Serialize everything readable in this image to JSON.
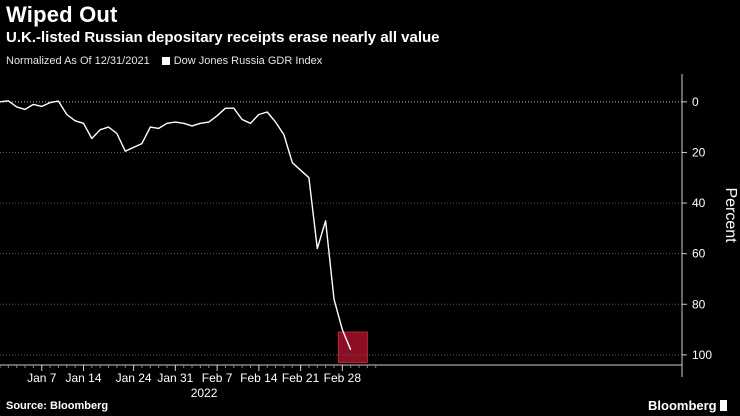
{
  "header": {
    "title": "Wiped Out",
    "subtitle": "U.K.-listed Russian depositary receipts erase nearly all value"
  },
  "legend": {
    "note": "Normalized As Of 12/31/2021",
    "series_label": "Dow Jones Russia GDR Index"
  },
  "footer": {
    "source": "Source: Bloomberg",
    "brand": "Bloomberg"
  },
  "colors": {
    "background": "#000000",
    "line": "#ffffff",
    "highlight": "#8b0f22"
  },
  "chart_data": {
    "type": "line",
    "title": "Wiped Out",
    "subtitle": "U.K.-listed Russian depositary receipts erase nearly all value",
    "ylabel": "Percent",
    "xlabel": "2022",
    "ylim": [
      -104,
      11
    ],
    "yticks": [
      0,
      -20,
      -40,
      -60,
      -80,
      -100
    ],
    "ytick_labels": [
      "0",
      "20",
      "40",
      "60",
      "80",
      "100"
    ],
    "x_tick_labels": [
      {
        "label": "Jan 7",
        "index": 5
      },
      {
        "label": "Jan 14",
        "index": 10
      },
      {
        "label": "Jan 24",
        "index": 16
      },
      {
        "label": "Jan 31",
        "index": 21
      },
      {
        "label": "Feb 7",
        "index": 26
      },
      {
        "label": "Feb 14",
        "index": 31
      },
      {
        "label": "Feb 21",
        "index": 36
      },
      {
        "label": "Feb 28",
        "index": 41
      }
    ],
    "year_label": "2022",
    "year_index": 23,
    "x_count": 45,
    "series": [
      {
        "name": "Dow Jones Russia GDR Index",
        "values": [
          0,
          0.4,
          -2,
          -3,
          -1,
          -1.8,
          -0.3,
          0.3,
          -5,
          -7.5,
          -8.5,
          -14.5,
          -11,
          -10,
          -12.5,
          -19.5,
          -18,
          -16.5,
          -10,
          -10.5,
          -8.5,
          -8,
          -8.5,
          -9.5,
          -8.5,
          -8,
          -5.5,
          -2.5,
          -2.5,
          -7,
          -8.5,
          -5,
          -4,
          -8,
          -13,
          -24,
          -27,
          -30,
          -58,
          -47,
          -78,
          -90,
          -98
        ]
      }
    ],
    "highlight": {
      "x_start": 41,
      "x_end": 44,
      "y_top": -91,
      "y_bottom": -103
    },
    "grid": "horizontal-dotted",
    "legend_position": "top-left"
  }
}
